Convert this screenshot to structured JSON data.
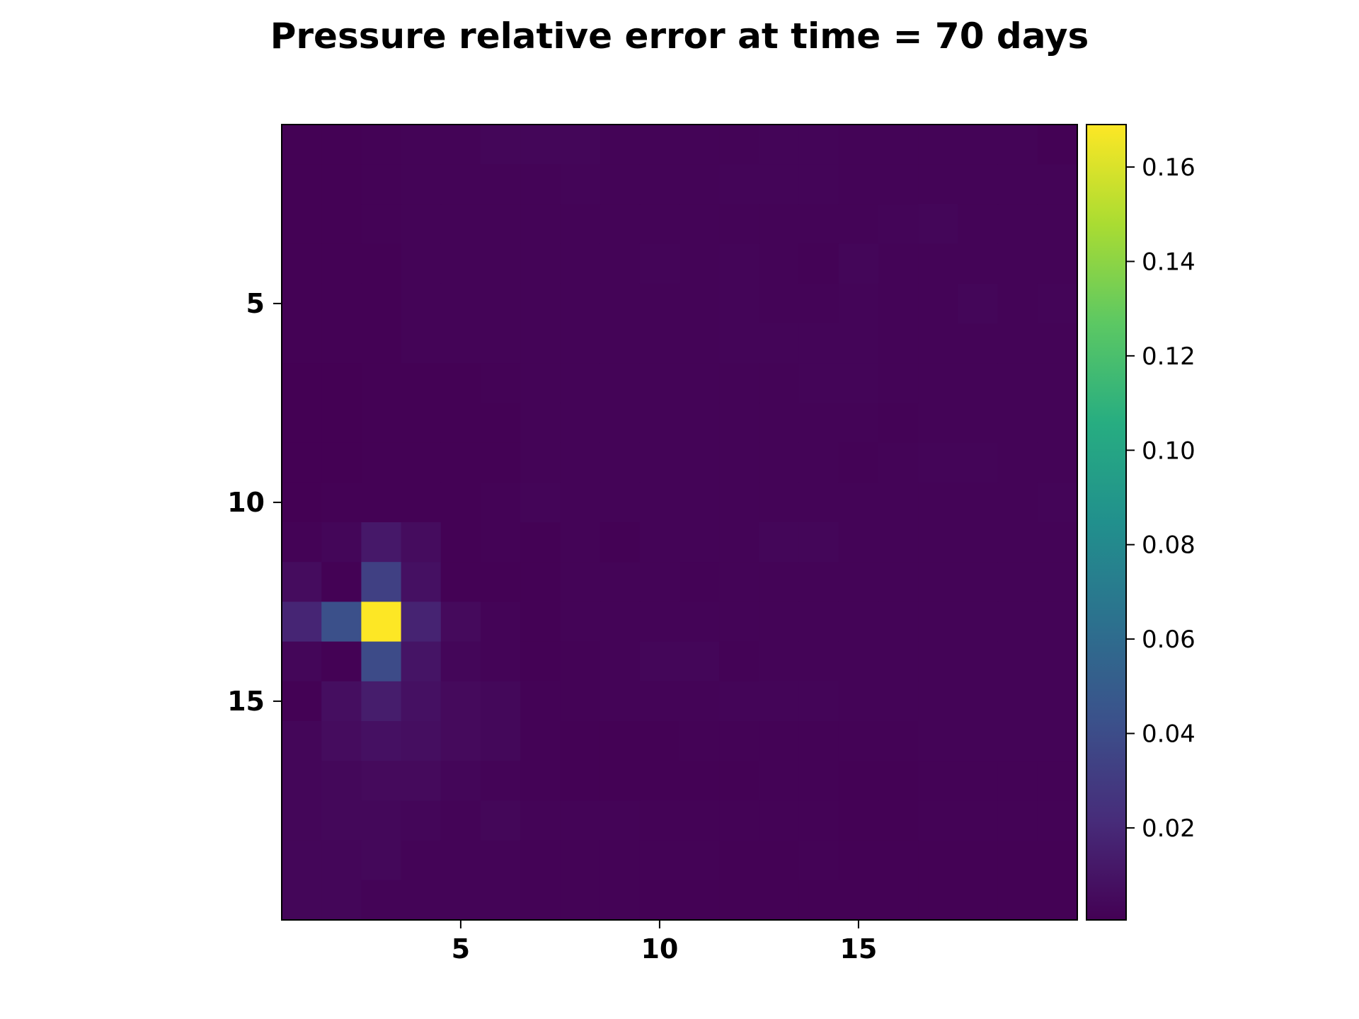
{
  "chart_data": {
    "type": "heatmap",
    "title": "Pressure relative error at time = 70 days",
    "xlabel": "",
    "ylabel": "",
    "x_range": [
      0.5,
      20.5
    ],
    "y_range": [
      0.5,
      20.5
    ],
    "y_axis_inverted": true,
    "x_ticks": [
      5,
      10,
      15
    ],
    "x_tick_labels": [
      "5",
      "10",
      "15"
    ],
    "y_ticks": [
      5,
      10,
      15
    ],
    "y_tick_labels": [
      "5",
      "10",
      "15"
    ],
    "grid": false,
    "colormap": "viridis",
    "colorbar": {
      "vmin": 0.0005,
      "vmax": 0.169,
      "ticks": [
        0.02,
        0.04,
        0.06,
        0.08,
        0.1,
        0.12,
        0.14,
        0.16
      ],
      "tick_labels": [
        "0.02",
        "0.04",
        "0.06",
        "0.08",
        "0.10",
        "0.12",
        "0.14",
        "0.16"
      ]
    },
    "values": [
      [
        0.001,
        0.001,
        0.0015,
        0.002,
        0.002,
        0.003,
        0.003,
        0.003,
        0.002,
        0.002,
        0.002,
        0.002,
        0.0025,
        0.0025,
        0.002,
        0.002,
        0.002,
        0.002,
        0.002,
        0.0012
      ],
      [
        0.001,
        0.001,
        0.0015,
        0.002,
        0.002,
        0.002,
        0.002,
        0.0025,
        0.002,
        0.002,
        0.002,
        0.0025,
        0.0025,
        0.0025,
        0.002,
        0.002,
        0.002,
        0.002,
        0.002,
        0.002
      ],
      [
        0.001,
        0.001,
        0.0015,
        0.002,
        0.002,
        0.002,
        0.002,
        0.002,
        0.002,
        0.002,
        0.002,
        0.002,
        0.002,
        0.002,
        0.002,
        0.0025,
        0.003,
        0.002,
        0.002,
        0.002
      ],
      [
        0.0008,
        0.0008,
        0.001,
        0.002,
        0.002,
        0.002,
        0.002,
        0.002,
        0.002,
        0.0025,
        0.002,
        0.0025,
        0.002,
        0.0015,
        0.003,
        0.002,
        0.002,
        0.002,
        0.002,
        0.002
      ],
      [
        0.0008,
        0.0008,
        0.001,
        0.002,
        0.002,
        0.002,
        0.002,
        0.002,
        0.002,
        0.002,
        0.002,
        0.0025,
        0.002,
        0.002,
        0.0025,
        0.002,
        0.002,
        0.003,
        0.002,
        0.0025
      ],
      [
        0.0008,
        0.0008,
        0.001,
        0.002,
        0.002,
        0.002,
        0.002,
        0.002,
        0.002,
        0.002,
        0.002,
        0.0025,
        0.0025,
        0.0025,
        0.0025,
        0.002,
        0.002,
        0.002,
        0.002,
        0.002
      ],
      [
        0.0006,
        0.0006,
        0.001,
        0.001,
        0.001,
        0.0015,
        0.002,
        0.002,
        0.002,
        0.002,
        0.002,
        0.002,
        0.002,
        0.0025,
        0.0025,
        0.002,
        0.002,
        0.002,
        0.002,
        0.002
      ],
      [
        0.0006,
        0.0006,
        0.0008,
        0.0008,
        0.001,
        0.001,
        0.002,
        0.002,
        0.002,
        0.002,
        0.002,
        0.002,
        0.002,
        0.002,
        0.002,
        0.0015,
        0.002,
        0.002,
        0.002,
        0.002
      ],
      [
        0.0006,
        0.0006,
        0.0008,
        0.0008,
        0.001,
        0.001,
        0.002,
        0.002,
        0.002,
        0.002,
        0.002,
        0.002,
        0.002,
        0.002,
        0.0015,
        0.002,
        0.0025,
        0.0025,
        0.002,
        0.002
      ],
      [
        0.0006,
        0.001,
        0.001,
        0.001,
        0.001,
        0.0015,
        0.0025,
        0.002,
        0.002,
        0.002,
        0.002,
        0.002,
        0.002,
        0.002,
        0.002,
        0.002,
        0.002,
        0.002,
        0.002,
        0.0025
      ],
      [
        0.0015,
        0.003,
        0.012,
        0.006,
        0.0012,
        0.0015,
        0.0012,
        0.002,
        0.001,
        0.002,
        0.002,
        0.002,
        0.003,
        0.003,
        0.002,
        0.002,
        0.002,
        0.002,
        0.002,
        0.002
      ],
      [
        0.006,
        0.001,
        0.033,
        0.008,
        0.001,
        0.001,
        0.001,
        0.002,
        0.002,
        0.002,
        0.0015,
        0.002,
        0.002,
        0.002,
        0.002,
        0.002,
        0.002,
        0.002,
        0.002,
        0.002
      ],
      [
        0.018,
        0.042,
        0.169,
        0.017,
        0.005,
        0.002,
        0.0012,
        0.002,
        0.002,
        0.002,
        0.002,
        0.002,
        0.002,
        0.002,
        0.002,
        0.002,
        0.002,
        0.002,
        0.002,
        0.002
      ],
      [
        0.003,
        0.001,
        0.039,
        0.01,
        0.003,
        0.002,
        0.0012,
        0.0015,
        0.002,
        0.003,
        0.003,
        0.0015,
        0.002,
        0.002,
        0.002,
        0.002,
        0.002,
        0.002,
        0.002,
        0.002
      ],
      [
        0.001,
        0.007,
        0.014,
        0.008,
        0.005,
        0.004,
        0.0015,
        0.0015,
        0.002,
        0.002,
        0.002,
        0.0025,
        0.0025,
        0.0025,
        0.002,
        0.002,
        0.002,
        0.002,
        0.002,
        0.002
      ],
      [
        0.003,
        0.006,
        0.008,
        0.007,
        0.005,
        0.004,
        0.0015,
        0.001,
        0.001,
        0.0012,
        0.0015,
        0.0015,
        0.0015,
        0.0015,
        0.0015,
        0.0015,
        0.002,
        0.002,
        0.002,
        0.002
      ],
      [
        0.003,
        0.004,
        0.005,
        0.005,
        0.003,
        0.002,
        0.0015,
        0.001,
        0.001,
        0.001,
        0.0012,
        0.0012,
        0.0015,
        0.0015,
        0.001,
        0.0012,
        0.0015,
        0.0015,
        0.0015,
        0.0015
      ],
      [
        0.003,
        0.004,
        0.004,
        0.003,
        0.002,
        0.0035,
        0.002,
        0.002,
        0.002,
        0.0015,
        0.0015,
        0.0015,
        0.0015,
        0.0015,
        0.001,
        0.001,
        0.0015,
        0.0015,
        0.0015,
        0.0015
      ],
      [
        0.003,
        0.003,
        0.004,
        0.002,
        0.002,
        0.002,
        0.0015,
        0.0015,
        0.0015,
        0.0015,
        0.0015,
        0.0012,
        0.0012,
        0.0015,
        0.001,
        0.001,
        0.0012,
        0.0012,
        0.0012,
        0.0012
      ],
      [
        0.003,
        0.003,
        0.002,
        0.002,
        0.002,
        0.002,
        0.0015,
        0.0015,
        0.0015,
        0.0012,
        0.0012,
        0.0012,
        0.0012,
        0.0012,
        0.001,
        0.001,
        0.0012,
        0.0012,
        0.0012,
        0.0012
      ]
    ]
  }
}
